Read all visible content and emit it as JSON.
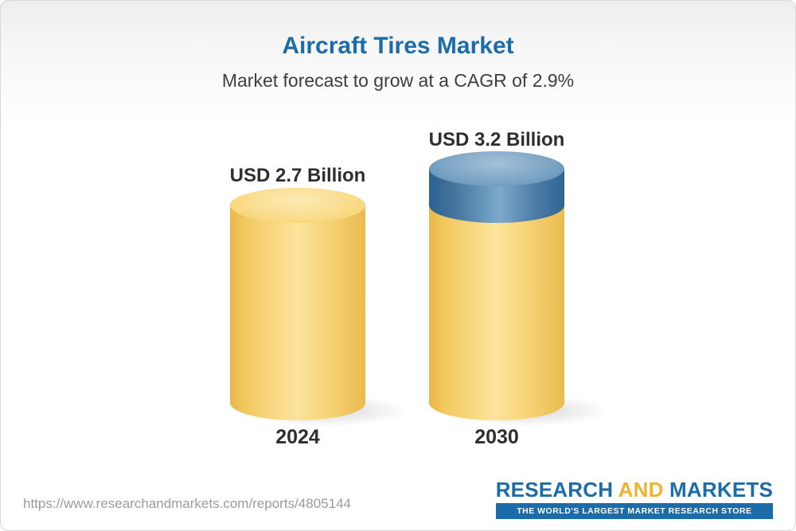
{
  "page": {
    "title": "Aircraft Tires Market",
    "subtitle": "Market forecast to grow at a CAGR of 2.9%"
  },
  "chart_data": {
    "type": "bar",
    "title": "Aircraft Tires Market",
    "subtitle": "Market forecast to grow at a CAGR of 2.9%",
    "unit": "USD Billion",
    "cagr_percent": 2.9,
    "categories": [
      "2024",
      "2030"
    ],
    "values": [
      2.7,
      3.2
    ],
    "value_labels": [
      "USD 2.7 Billion",
      "USD 3.2 Billion"
    ],
    "growth_segment_value": 0.5,
    "legend": "none",
    "axes": "none",
    "style": "3d-cylinder-pictorial",
    "colors": {
      "base_segment": "#F5CD66",
      "growth_segment": "#4A7BA5",
      "title": "#1B6CA8",
      "labels": "#2E2E2E"
    }
  },
  "footer": {
    "url": "https://www.researchandmarkets.com/reports/4805144",
    "logo": {
      "research": "RESEARCH",
      "and": "AND",
      "markets": "MARKETS",
      "tagline": "THE WORLD'S LARGEST MARKET RESEARCH STORE"
    }
  }
}
